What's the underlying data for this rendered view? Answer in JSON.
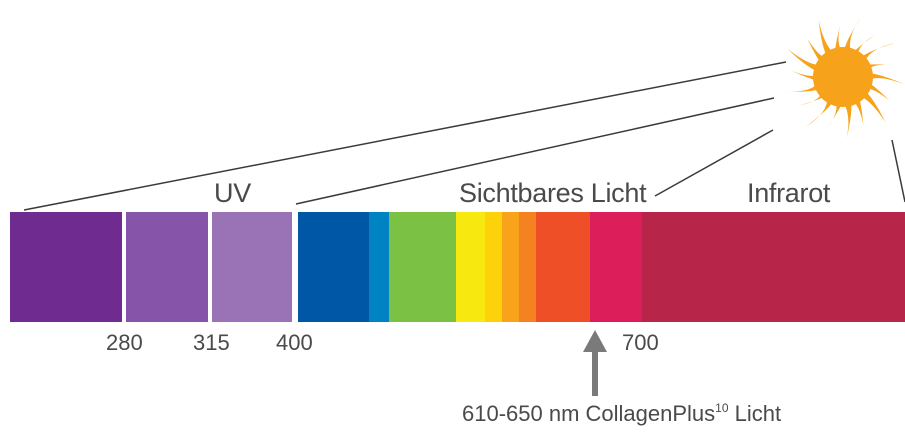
{
  "regions": {
    "uv": "UV",
    "visible": "Sichtbares Licht",
    "infrared": "Infrarot"
  },
  "ticks": {
    "t280": "280",
    "t315": "315",
    "t400": "400",
    "t700": "700"
  },
  "callout": {
    "text_before": "610-650 nm CollagenPlus",
    "superscript": "10",
    "text_after": " Licht"
  },
  "colors": {
    "uv_1": "#6f2b8f",
    "uv_2": "#8654a8",
    "uv_3": "#9a73b6",
    "blue": "#0057a6",
    "cyan": "#0083c3",
    "green": "#7bc144",
    "yellow": "#f7e90f",
    "yellow_2": "#fdd20b",
    "orange_1": "#f9a31b",
    "orange_2": "#f58220",
    "red_orange": "#ee4f27",
    "pink": "#dc1f5a",
    "infrared": "#b72548",
    "sun": "#f7a21b",
    "arrow": "#7a7a7a",
    "text": "#4a4a4a"
  }
}
